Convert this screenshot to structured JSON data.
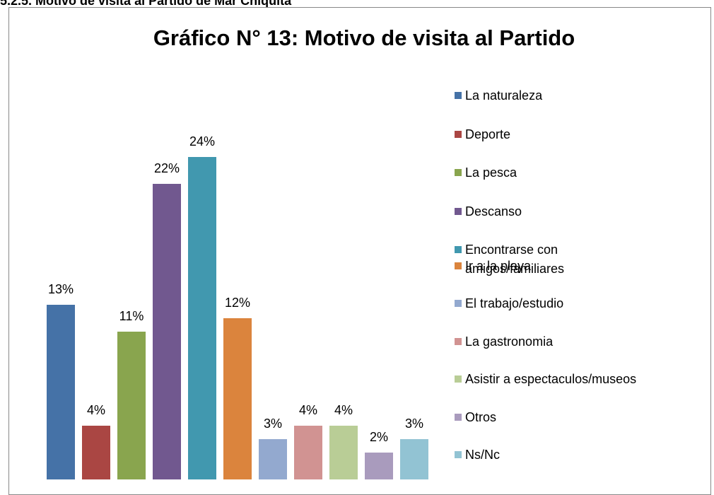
{
  "heading": "5.2.5. Motivo de visita al Partido de Mar Chiquita",
  "chart_data": {
    "type": "bar",
    "title": "Gráfico N° 13: Motivo de visita al Partido",
    "categories": [
      "La naturaleza",
      "Deporte",
      "La pesca",
      "Descanso",
      "Encontrarse con amigos/familiares",
      "Ir a la playa",
      "El trabajo/estudio",
      "La gastronomia",
      "Asistir a espectaculos/museos",
      "Otros",
      "Ns/Nc"
    ],
    "values": [
      13,
      4,
      11,
      22,
      24,
      12,
      3,
      4,
      4,
      2,
      3
    ],
    "value_labels": [
      "13%",
      "4%",
      "11%",
      "22%",
      "24%",
      "12%",
      "3%",
      "4%",
      "4%",
      "2%",
      "3%"
    ],
    "colors": [
      "#4572a7",
      "#aa4643",
      "#89a54e",
      "#71588f",
      "#4198af",
      "#db843d",
      "#93a9cf",
      "#d19392",
      "#b9cd96",
      "#a99bbd",
      "#92c3d3"
    ],
    "legend": "right"
  }
}
